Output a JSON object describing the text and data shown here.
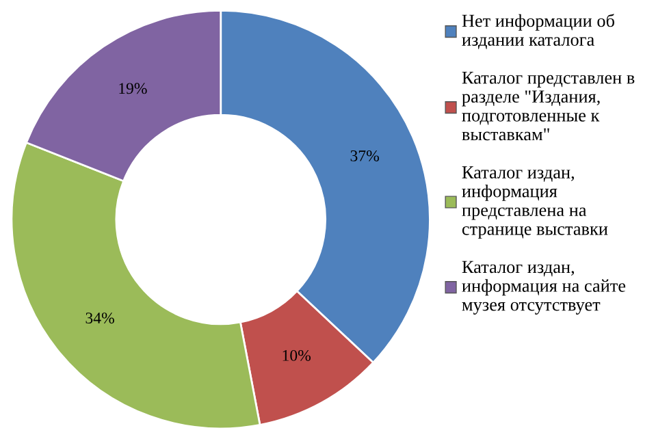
{
  "chart_data": {
    "type": "donut",
    "categories": [
      "Нет информации об\nиздании каталога",
      "Каталог представлен в\nразделе \"Издания,\nподготовленные к\nвыставкам\"",
      "Каталог издан,\nинформация\nпредставлена на\nстранице выставки",
      "Каталог издан,\nинформация на сайте\nмузея отсутствует"
    ],
    "values": [
      37,
      10,
      34,
      19
    ],
    "colors": [
      "#4f81bd",
      "#c0504d",
      "#9bbb59",
      "#8064a2"
    ],
    "value_labels": [
      "37%",
      "10%",
      "34%",
      "19%"
    ],
    "legend": "right"
  }
}
